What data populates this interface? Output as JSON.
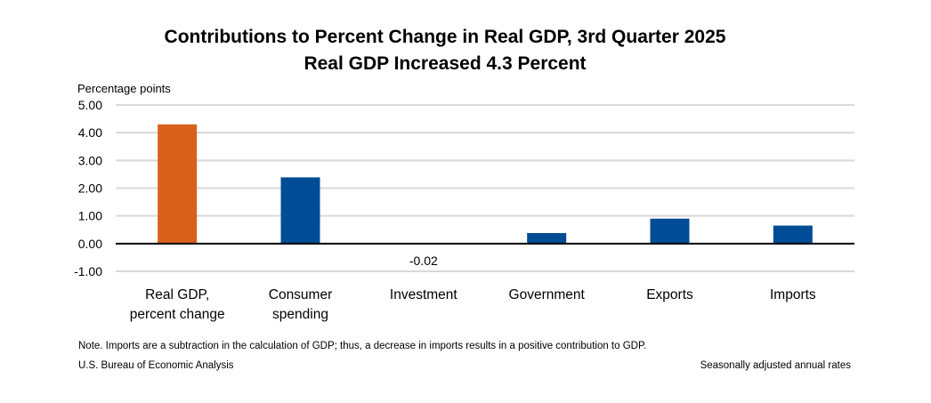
{
  "chart_data": {
    "type": "bar",
    "title": "Contributions to Percent Change in Real GDP, 3rd Quarter 2025",
    "subtitle": "Real GDP Increased 4.3 Percent",
    "ylabel": "Percentage points",
    "xlabel": "",
    "categories": [
      [
        "Real GDP,",
        "percent change"
      ],
      [
        "Consumer",
        "spending"
      ],
      [
        "Investment"
      ],
      [
        "Government"
      ],
      [
        "Exports"
      ],
      [
        "Imports"
      ]
    ],
    "values": [
      4.3,
      2.39,
      -0.02,
      0.38,
      0.9,
      0.65
    ],
    "colors": [
      "#D9601A",
      "#004C97",
      "#004C97",
      "#004C97",
      "#004C97",
      "#004C97"
    ],
    "data_labels": [
      null,
      null,
      "-0.02",
      null,
      null,
      null
    ],
    "ylim": [
      -1,
      5
    ],
    "yticks": [
      "-1.00",
      "0.00",
      "1.00",
      "2.00",
      "3.00",
      "4.00",
      "5.00"
    ],
    "grid": true,
    "note": "Note. Imports are a subtraction in the calculation of GDP; thus, a decrease in imports results in a positive contribution to GDP.",
    "source": "U.S. Bureau of Economic Analysis",
    "footer_right": "Seasonally adjusted annual rates"
  }
}
